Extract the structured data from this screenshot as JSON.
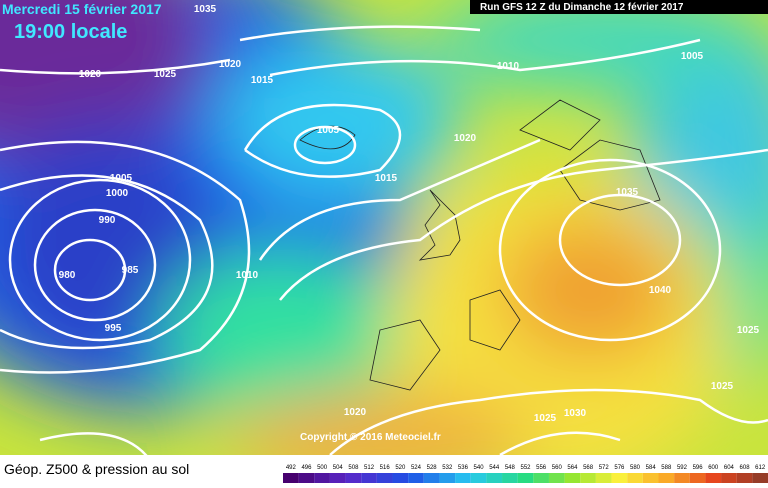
{
  "header": {
    "date": "Mercredi 15 février 2017",
    "time": "19:00 locale",
    "run": "Run GFS 12 Z du Dimanche 12 février 2017"
  },
  "isobar_labels": [
    "1035",
    "1020",
    "1025",
    "1020",
    "1015",
    "1010",
    "1005",
    "1005",
    "1020",
    "1005",
    "1000",
    "1015",
    "1035",
    "990",
    "980",
    "985",
    "1010",
    "1040",
    "1025",
    "995",
    "1025",
    "1020",
    "1025",
    "1030"
  ],
  "copyright": "Copyright © 2016 Meteociel.fr",
  "legend": {
    "title": "Géop. Z500 & pression au sol",
    "scale": [
      492,
      496,
      500,
      504,
      508,
      512,
      516,
      520,
      524,
      528,
      532,
      536,
      540,
      544,
      548,
      552,
      556,
      560,
      564,
      568,
      572,
      576,
      580,
      584,
      588,
      592,
      596,
      600,
      604,
      608,
      612
    ]
  }
}
